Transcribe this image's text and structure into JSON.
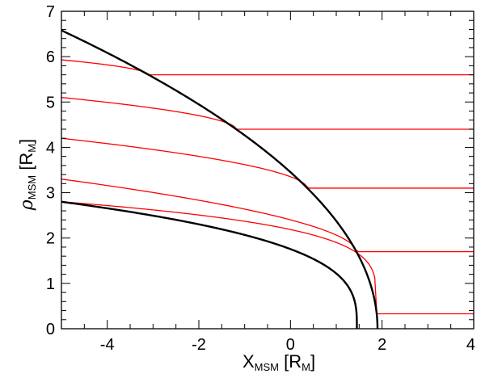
{
  "chart_data": {
    "type": "line",
    "title": "",
    "xlabel": {
      "main": "X",
      "sub": "MSM",
      "unit_main": " [R",
      "unit_sub": "M",
      "close": "]"
    },
    "ylabel": {
      "symbol": "ρ",
      "sub": "MSM",
      "unit_main": " [R",
      "unit_sub": "M",
      "close": "]"
    },
    "xlim": [
      -5,
      4
    ],
    "ylim": [
      0,
      7
    ],
    "x_ticks": [
      -4,
      -2,
      0,
      2,
      4
    ],
    "y_ticks": [
      0,
      1,
      2,
      3,
      4,
      5,
      6,
      7
    ],
    "x_tick_labels": [
      "-4",
      "-2",
      "0",
      "2",
      "4"
    ],
    "y_tick_labels": [
      "0",
      "1",
      "2",
      "3",
      "4",
      "5",
      "6",
      "7"
    ],
    "minor_x_step": 0.5,
    "minor_y_step": 0.2,
    "grid": false,
    "boundaries": [
      {
        "color": "#000000",
        "nose_x": 1.45,
        "y_at_x_min": 2.8
      },
      {
        "color": "#000000",
        "nose_x": 1.9,
        "y_at_x_min": 6.58
      }
    ],
    "red_field_lines": {
      "color": "#ff0000",
      "asymptotic_y": [
        0.33,
        1.7,
        3.1,
        4.4,
        5.6
      ],
      "y_at_x_min": [
        2.8,
        3.3,
        4.2,
        5.1,
        5.93
      ]
    }
  }
}
